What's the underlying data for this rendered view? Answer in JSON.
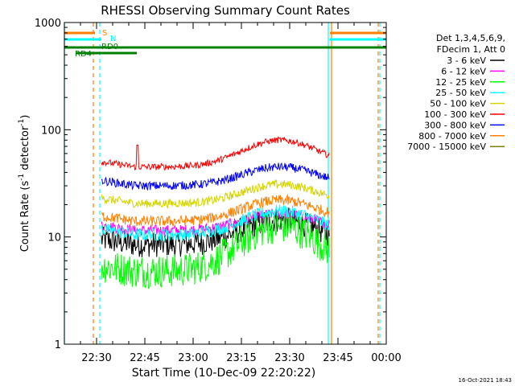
{
  "chart_data": {
    "type": "line",
    "title": "RHESSI Observing Summary Count Rates",
    "xlabel": "Start Time (10-Dec-09 22:20:22)",
    "ylabel_main": "Count Rate (s",
    "ylabel_sup": "-1",
    "ylabel_mid": " detector",
    "ylabel_end": ")",
    "y_scale": "log",
    "ylim": [
      1,
      1000
    ],
    "xlim_minutes": [
      0,
      100
    ],
    "y_ticks": [
      {
        "value": 1,
        "label": "1"
      },
      {
        "value": 10,
        "label": "10"
      },
      {
        "value": 100,
        "label": "100"
      },
      {
        "value": 1000,
        "label": "1000"
      }
    ],
    "x_ticks": [
      {
        "minute": 10,
        "label": "22:30"
      },
      {
        "minute": 25,
        "label": "22:45"
      },
      {
        "minute": 40,
        "label": "23:00"
      },
      {
        "minute": 55,
        "label": "23:15"
      },
      {
        "minute": 70,
        "label": "23:30"
      },
      {
        "minute": 85,
        "label": "23:45"
      },
      {
        "minute": 100,
        "label": "00:00"
      }
    ],
    "legend_header": [
      "Det 1,3,4,5,6,9,",
      "FDecim 1, Att 0"
    ],
    "series": [
      {
        "name": "3 - 6 keV",
        "color": "#000000",
        "base": 8.5,
        "peak": 14.5,
        "noise": 0.12
      },
      {
        "name": "6 - 12 keV",
        "color": "#ff00ff",
        "base": 11.5,
        "peak": 16.5,
        "noise": 0.05
      },
      {
        "name": "12 - 25 keV",
        "color": "#00ff00",
        "base": 4.8,
        "peak": 12.5,
        "noise": 0.16
      },
      {
        "name": "25 - 50 keV",
        "color": "#00ffff",
        "base": 10.5,
        "peak": 17.5,
        "noise": 0.06
      },
      {
        "name": "50 - 100 keV",
        "color": "#d4d400",
        "base": 20.5,
        "peak": 31,
        "noise": 0.04
      },
      {
        "name": "100 - 300 keV",
        "color": "#ff0000",
        "base": 45,
        "peak": 80,
        "noise": 0.03
      },
      {
        "name": "300 - 800 keV",
        "color": "#0000ff",
        "base": 30,
        "peak": 45,
        "noise": 0.04
      },
      {
        "name": "800 - 7000 keV",
        "color": "#ff8000",
        "base": 14,
        "peak": 22,
        "noise": 0.05
      },
      {
        "name": "7000 - 15000 keV",
        "color": "#808000",
        "base": 0,
        "peak": 0,
        "noise": 0
      }
    ],
    "status_flags": [
      {
        "label": "S",
        "color": "#ff8000",
        "segments": [
          [
            0,
            9.5
          ],
          [
            82.5,
            100
          ]
        ]
      },
      {
        "label": "N",
        "color": "#00ffff",
        "segments": [
          [
            0,
            11.5
          ],
          [
            82.5,
            100
          ]
        ]
      },
      {
        "label": "RD0",
        "color": "#008000",
        "segments": [
          [
            0,
            100
          ]
        ]
      },
      {
        "label": "RD4",
        "color": "#008000",
        "segments": [
          [
            3.5,
            22.5
          ]
        ]
      }
    ],
    "vertical_markers": [
      {
        "minute": 0,
        "color": "#00ffff",
        "style": "solid"
      },
      {
        "minute": 9,
        "color": "#ff8000",
        "style": "dashed"
      },
      {
        "minute": 11,
        "color": "#00ffff",
        "style": "dashed"
      },
      {
        "minute": 82,
        "color": "#00ffff",
        "style": "solid"
      },
      {
        "minute": 83,
        "color": "#ff8000",
        "style": "solid"
      },
      {
        "minute": 97.5,
        "color": "#ff8000",
        "style": "dashed"
      },
      {
        "minute": 98,
        "color": "#00ffff",
        "style": "dashed"
      }
    ],
    "data_range_minutes": [
      11.5,
      82.5
    ],
    "flare_minute": 82.3
  },
  "footer_date": "16-Oct-2021 18:43"
}
